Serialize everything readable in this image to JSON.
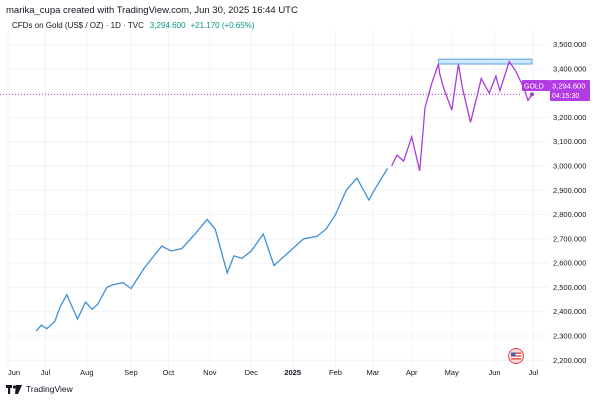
{
  "header": {
    "credit": "marika_cupa created with TradingView.com, Jun 30, 2025 16:44 UTC",
    "symbol": "CFDs on Gold (US$ / OZ) · 1D · TVC",
    "price": "3,294.600",
    "change": "+21.170 (+0.65%)"
  },
  "footer": {
    "brand": "TradingView",
    "logo_icon": "tradingview-logo-icon"
  },
  "price_tag": {
    "symbol": "GOLD",
    "price": "3,294.600",
    "countdown": "04:15:30"
  },
  "flag_icon": "us-flag-icon",
  "colors": {
    "blue_series": "#3f8fd6",
    "purple_series": "#a93ddc",
    "resistance_fill": "#cfe6fb",
    "resistance_border": "#5da6e6",
    "tag_bg": "#b23be3",
    "grid": "#f0f3fa"
  },
  "chart_data": {
    "type": "line",
    "title": "CFDs on Gold (US$ / OZ)",
    "xlabel": "",
    "ylabel": "",
    "ylim": [
      2160,
      3560
    ],
    "x_ticks": [
      "Jun",
      "Jul",
      "Aug",
      "Sep",
      "Oct",
      "Nov",
      "Dec",
      "2025",
      "Feb",
      "Mar",
      "Apr",
      "May",
      "Jun",
      "Jul"
    ],
    "y_ticks": [
      "3,500.000",
      "3,400.000",
      "3,300.000",
      "3,200.000",
      "3,100.000",
      "3,000.000",
      "2,900.000",
      "2,800.000",
      "2,700.000",
      "2,600.000",
      "2,500.000",
      "2,400.000",
      "2,300.000",
      "2,200.000"
    ],
    "series": [
      {
        "name": "",
        "color": "blue",
        "x": [
          "2024-06-24",
          "2024-06-28",
          "2024-07-02",
          "2024-07-08",
          "2024-07-12",
          "2024-07-17",
          "2024-07-25",
          "2024-07-31",
          "2024-08-05",
          "2024-08-09",
          "2024-08-16",
          "2024-08-20",
          "2024-08-28",
          "2024-09-03",
          "2024-09-13",
          "2024-09-26",
          "2024-10-03",
          "2024-10-11",
          "2024-10-21",
          "2024-10-30",
          "2024-11-05",
          "2024-11-14",
          "2024-11-19",
          "2024-11-25",
          "2024-12-02",
          "2024-12-11",
          "2024-12-19",
          "2024-12-23",
          "2025-01-02",
          "2025-01-10",
          "2025-01-20",
          "2025-01-27",
          "2025-02-03",
          "2025-02-11",
          "2025-02-19",
          "2025-02-28",
          "2025-03-04",
          "2025-03-14"
        ],
        "values": [
          2320,
          2345,
          2330,
          2360,
          2420,
          2470,
          2370,
          2440,
          2410,
          2430,
          2500,
          2510,
          2520,
          2495,
          2580,
          2670,
          2650,
          2660,
          2720,
          2780,
          2740,
          2560,
          2630,
          2620,
          2650,
          2720,
          2590,
          2610,
          2660,
          2700,
          2710,
          2740,
          2800,
          2900,
          2950,
          2860,
          2900,
          2990
        ]
      },
      {
        "name": "GOLD",
        "color": "purple",
        "x": [
          "2025-03-17",
          "2025-03-21",
          "2025-03-26",
          "2025-04-01",
          "2025-04-07",
          "2025-04-11",
          "2025-04-16",
          "2025-04-21",
          "2025-04-22",
          "2025-04-25",
          "2025-05-01",
          "2025-05-06",
          "2025-05-09",
          "2025-05-15",
          "2025-05-20",
          "2025-05-23",
          "2025-05-29",
          "2025-06-03",
          "2025-06-06",
          "2025-06-13",
          "2025-06-18",
          "2025-06-24",
          "2025-06-27",
          "2025-06-30"
        ],
        "values": [
          3000,
          3045,
          3020,
          3120,
          2980,
          3240,
          3340,
          3420,
          3380,
          3320,
          3230,
          3420,
          3320,
          3180,
          3290,
          3360,
          3300,
          3370,
          3310,
          3430,
          3390,
          3320,
          3270,
          3295
        ]
      }
    ],
    "annotations": [
      {
        "type": "rectangle",
        "label": "resistance zone",
        "x_range": [
          "2025-04-21",
          "2025-06-30"
        ],
        "y_range": [
          3420,
          3440
        ]
      }
    ]
  }
}
